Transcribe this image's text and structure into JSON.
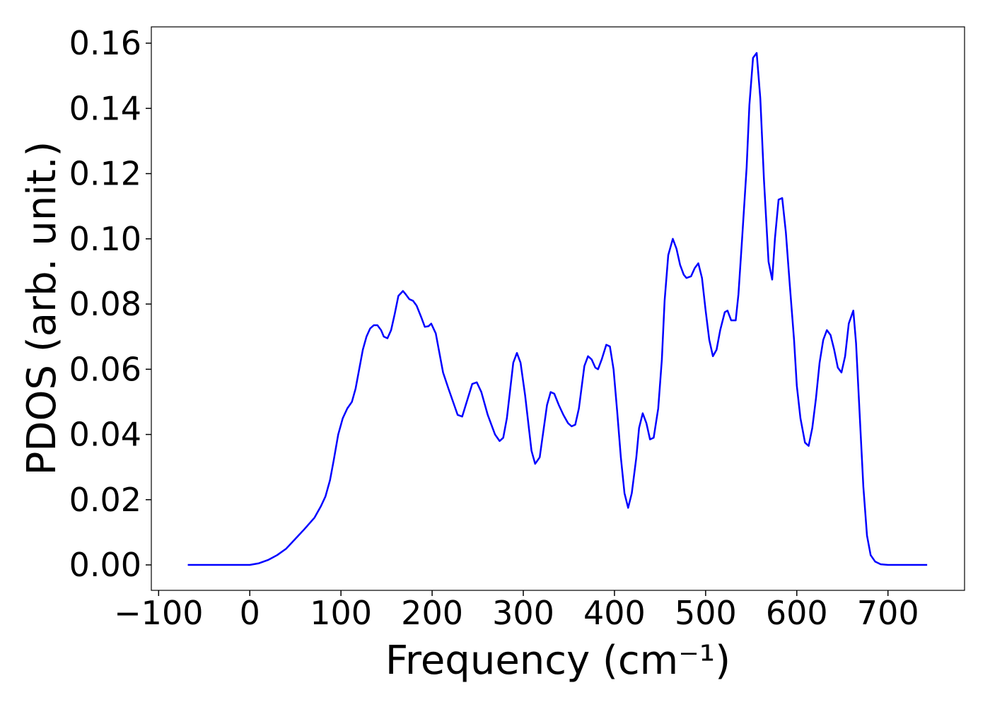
{
  "chart_data": {
    "type": "line",
    "xlabel": "Frequency (cm⁻¹)",
    "ylabel": "PDOS (arb. unit.)",
    "x": [
      -68,
      0,
      10,
      20,
      30,
      40,
      50,
      60,
      71,
      78,
      83,
      88,
      92,
      97,
      102,
      107,
      112,
      116,
      120,
      124,
      128,
      132,
      136,
      140,
      144,
      147,
      151,
      155,
      159,
      163,
      168,
      171,
      175,
      179,
      183,
      188,
      192,
      196,
      199,
      204,
      208,
      212,
      218,
      228,
      233,
      244,
      249,
      254,
      261,
      269,
      274,
      278,
      282,
      289,
      293,
      297,
      302,
      309,
      313,
      318,
      326,
      330,
      334,
      339,
      344,
      349,
      353,
      357,
      361,
      367,
      371,
      375,
      379,
      382,
      386,
      391,
      395,
      399,
      403,
      407,
      411,
      415,
      419,
      424,
      427,
      431,
      435,
      439,
      443,
      448,
      452,
      455,
      459,
      464,
      468,
      472,
      476,
      479,
      484,
      488,
      492,
      496,
      500,
      504,
      508,
      512,
      516,
      521,
      524,
      528,
      533,
      536,
      540,
      545,
      548,
      552,
      556,
      560,
      564,
      569,
      573,
      576,
      580,
      584,
      588,
      592,
      597,
      600,
      604,
      609,
      613,
      617,
      621,
      625,
      629,
      633,
      637,
      641,
      645,
      649,
      653,
      657,
      662,
      665,
      669,
      673,
      677,
      681,
      686,
      692,
      700,
      743
    ],
    "series": [
      {
        "color": "#0000ff",
        "values": [
          0,
          0,
          0.0005,
          0.0015,
          0.003,
          0.005,
          0.008,
          0.011,
          0.0145,
          0.018,
          0.021,
          0.026,
          0.032,
          0.04,
          0.045,
          0.048,
          0.05,
          0.054,
          0.06,
          0.066,
          0.07,
          0.0725,
          0.0735,
          0.0735,
          0.072,
          0.07,
          0.0695,
          0.072,
          0.077,
          0.0825,
          0.084,
          0.083,
          0.0815,
          0.081,
          0.0795,
          0.076,
          0.073,
          0.0732,
          0.074,
          0.071,
          0.065,
          0.059,
          0.054,
          0.046,
          0.0455,
          0.0555,
          0.056,
          0.053,
          0.046,
          0.04,
          0.038,
          0.039,
          0.045,
          0.062,
          0.065,
          0.062,
          0.052,
          0.035,
          0.031,
          0.033,
          0.049,
          0.053,
          0.0525,
          0.049,
          0.046,
          0.0435,
          0.0425,
          0.043,
          0.048,
          0.061,
          0.064,
          0.063,
          0.0605,
          0.06,
          0.063,
          0.0675,
          0.067,
          0.06,
          0.047,
          0.033,
          0.022,
          0.0175,
          0.022,
          0.033,
          0.042,
          0.0465,
          0.0435,
          0.0385,
          0.039,
          0.048,
          0.063,
          0.081,
          0.095,
          0.1,
          0.097,
          0.092,
          0.089,
          0.088,
          0.0885,
          0.091,
          0.0925,
          0.088,
          0.078,
          0.069,
          0.064,
          0.066,
          0.072,
          0.0775,
          0.078,
          0.075,
          0.075,
          0.083,
          0.1,
          0.122,
          0.141,
          0.1555,
          0.157,
          0.143,
          0.118,
          0.093,
          0.0875,
          0.1,
          0.112,
          0.1125,
          0.102,
          0.087,
          0.069,
          0.055,
          0.045,
          0.0375,
          0.0365,
          0.042,
          0.051,
          0.062,
          0.069,
          0.072,
          0.0705,
          0.066,
          0.0605,
          0.059,
          0.064,
          0.074,
          0.078,
          0.068,
          0.046,
          0.024,
          0.009,
          0.003,
          0.001,
          0.0002,
          0,
          0
        ]
      }
    ],
    "xlim": [
      -108,
      784
    ],
    "ylim": [
      -0.0078,
      0.165
    ],
    "xticks": [
      {
        "value": -100,
        "label": "−100"
      },
      0,
      100,
      200,
      300,
      400,
      500,
      600,
      700
    ],
    "yticks": [
      {
        "value": 0,
        "label": "0.00"
      },
      {
        "value": 0.02,
        "label": "0.02"
      },
      {
        "value": 0.04,
        "label": "0.04"
      },
      {
        "value": 0.06,
        "label": "0.06"
      },
      {
        "value": 0.08,
        "label": "0.08"
      },
      {
        "value": 0.1,
        "label": "0.10"
      },
      {
        "value": 0.12,
        "label": "0.12"
      },
      {
        "value": 0.14,
        "label": "0.14"
      },
      {
        "value": 0.16,
        "label": "0.16"
      }
    ]
  }
}
